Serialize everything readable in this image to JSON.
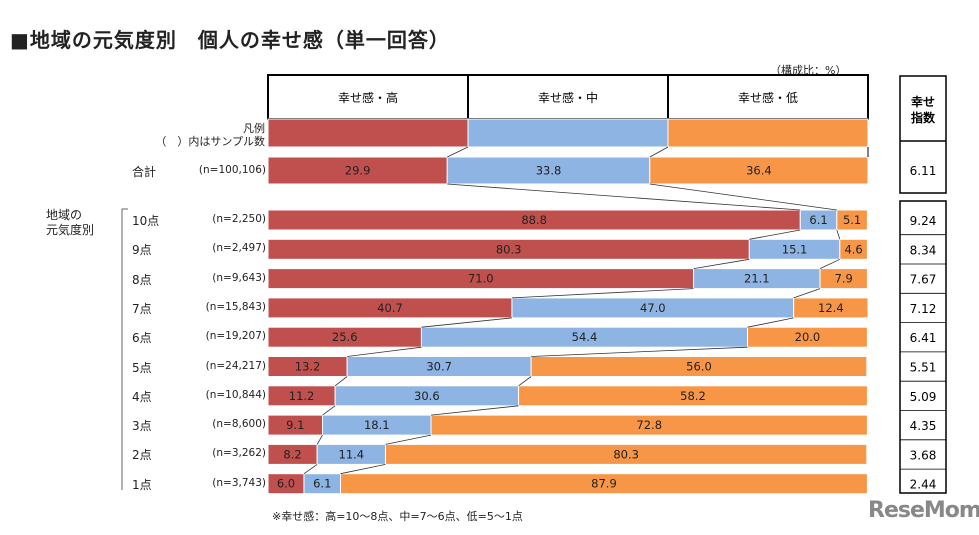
{
  "title": "■地域の元気度別　個人の幸せ感（単一回答）",
  "unit_note": "（構成比：%）",
  "legend_note": [
    "凡例",
    "（　）内はサンプル数"
  ],
  "region_group_label": [
    "地域の",
    "元気度別"
  ],
  "footnote": "※幸せ感：高=10～8点、中=7～6点、低=5～1点",
  "logo": "ReseMom",
  "index_header": [
    "幸せ",
    "指数"
  ],
  "colors": {
    "high": "#C0504D",
    "mid": "#8DB4E2",
    "low": "#F79646"
  },
  "chart_data": {
    "type": "bar",
    "stacked": true,
    "orientation": "horizontal",
    "series": [
      {
        "name": "幸せ感・高"
      },
      {
        "name": "幸せ感・中"
      },
      {
        "name": "幸せ感・低"
      }
    ],
    "total": {
      "label": "合計",
      "n": "(n=100,106)",
      "values": [
        29.9,
        33.8,
        36.4
      ],
      "index": "6.11"
    },
    "rows": [
      {
        "label": "10点",
        "n": "(n=2,250)",
        "values": [
          88.8,
          6.1,
          5.1
        ],
        "index": "9.24"
      },
      {
        "label": "9点",
        "n": "(n=2,497)",
        "values": [
          80.3,
          15.1,
          4.6
        ],
        "index": "8.34"
      },
      {
        "label": "8点",
        "n": "(n=9,643)",
        "values": [
          71.0,
          21.1,
          7.9
        ],
        "index": "7.67"
      },
      {
        "label": "7点",
        "n": "(n=15,843)",
        "values": [
          40.7,
          47.0,
          12.4
        ],
        "index": "7.12"
      },
      {
        "label": "6点",
        "n": "(n=19,207)",
        "values": [
          25.6,
          54.4,
          20.0
        ],
        "index": "6.41"
      },
      {
        "label": "5点",
        "n": "(n=24,217)",
        "values": [
          13.2,
          30.7,
          56.0
        ],
        "index": "5.51"
      },
      {
        "label": "4点",
        "n": "(n=10,844)",
        "values": [
          11.2,
          30.6,
          58.2
        ],
        "index": "5.09"
      },
      {
        "label": "3点",
        "n": "(n=8,600)",
        "values": [
          9.1,
          18.1,
          72.8
        ],
        "index": "4.35"
      },
      {
        "label": "2点",
        "n": "(n=3,262)",
        "values": [
          8.2,
          11.4,
          80.3
        ],
        "index": "3.68"
      },
      {
        "label": "1点",
        "n": "(n=3,743)",
        "values": [
          6.0,
          6.1,
          87.9
        ],
        "index": "2.44"
      }
    ],
    "xlim": [
      0,
      100
    ]
  }
}
